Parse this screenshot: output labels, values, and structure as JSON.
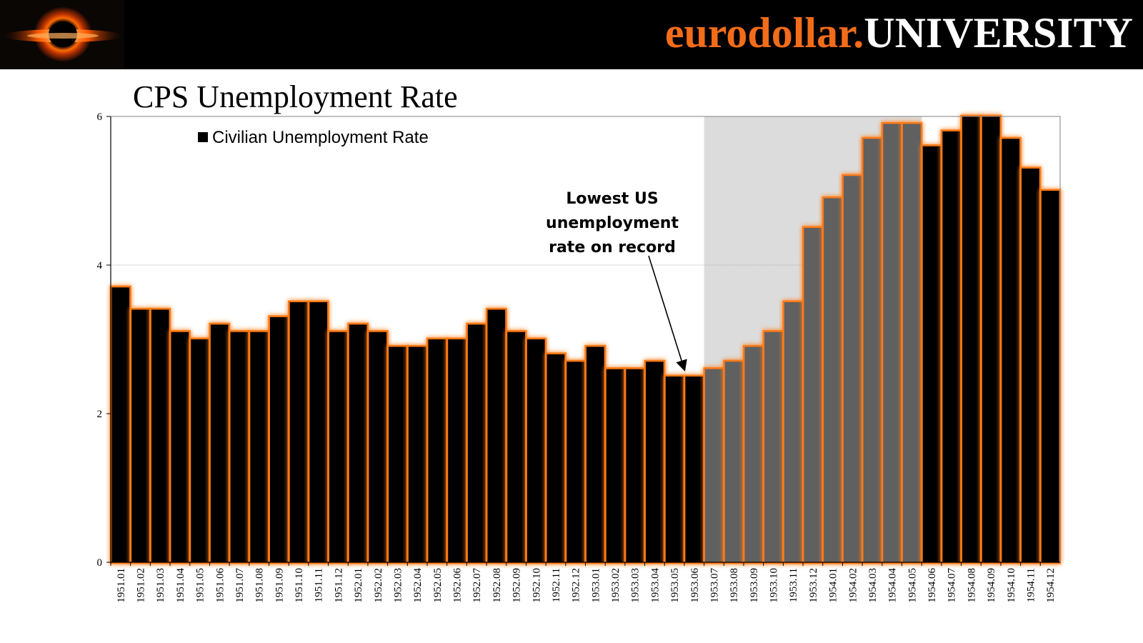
{
  "header": {
    "brand_left": "eurodollar.",
    "brand_right": "UNIVERSITY",
    "logo_icon": "black-hole-logo-icon"
  },
  "colors": {
    "header_bg": "#000000",
    "brand_orange": "#f26c1a",
    "bar_black": "#000000",
    "bar_gray": "#606060",
    "glow": "#ff7a12",
    "shade": "#dcdcdc"
  },
  "chart_data": {
    "type": "bar",
    "title": "CPS Unemployment Rate",
    "xlabel": "",
    "ylabel": "",
    "ylim": [
      0,
      6
    ],
    "yticks": [
      "0",
      "2",
      "4",
      "6"
    ],
    "legend": "Civilian Unemployment Rate",
    "legend_position": "top-left",
    "annotation": {
      "lines": [
        "Lowest US",
        "unemployment",
        "rate on record"
      ],
      "points_to": "1953.05"
    },
    "shaded_region": {
      "from": "1953.07",
      "to": "1954.05"
    },
    "categories": [
      "1951.01",
      "1951.02",
      "1951.03",
      "1951.04",
      "1951.05",
      "1951.06",
      "1951.07",
      "1951.08",
      "1951.09",
      "1951.10",
      "1951.11",
      "1951.12",
      "1952.01",
      "1952.02",
      "1952.03",
      "1952.04",
      "1952.05",
      "1952.06",
      "1952.07",
      "1952.08",
      "1952.09",
      "1952.10",
      "1952.11",
      "1952.12",
      "1953.01",
      "1953.02",
      "1953.03",
      "1953.04",
      "1953.05",
      "1953.06",
      "1953.07",
      "1953.08",
      "1953.09",
      "1953.10",
      "1953.11",
      "1953.12",
      "1954.01",
      "1954.02",
      "1954.03",
      "1954.04",
      "1954.05",
      "1954.06",
      "1954.07",
      "1954.08",
      "1954.09",
      "1954.10",
      "1954.11",
      "1954.12"
    ],
    "series": [
      {
        "name": "Civilian Unemployment Rate",
        "values": [
          3.7,
          3.4,
          3.4,
          3.1,
          3.0,
          3.2,
          3.1,
          3.1,
          3.3,
          3.5,
          3.5,
          3.1,
          3.2,
          3.1,
          2.9,
          2.9,
          3.0,
          3.0,
          3.2,
          3.4,
          3.1,
          3.0,
          2.8,
          2.7,
          2.9,
          2.6,
          2.6,
          2.7,
          2.5,
          2.5,
          2.6,
          2.7,
          2.9,
          3.1,
          3.5,
          4.5,
          4.9,
          5.2,
          5.7,
          5.9,
          5.9,
          5.6,
          5.8,
          6.0,
          6.1,
          5.7,
          5.3,
          5.0
        ]
      }
    ]
  }
}
